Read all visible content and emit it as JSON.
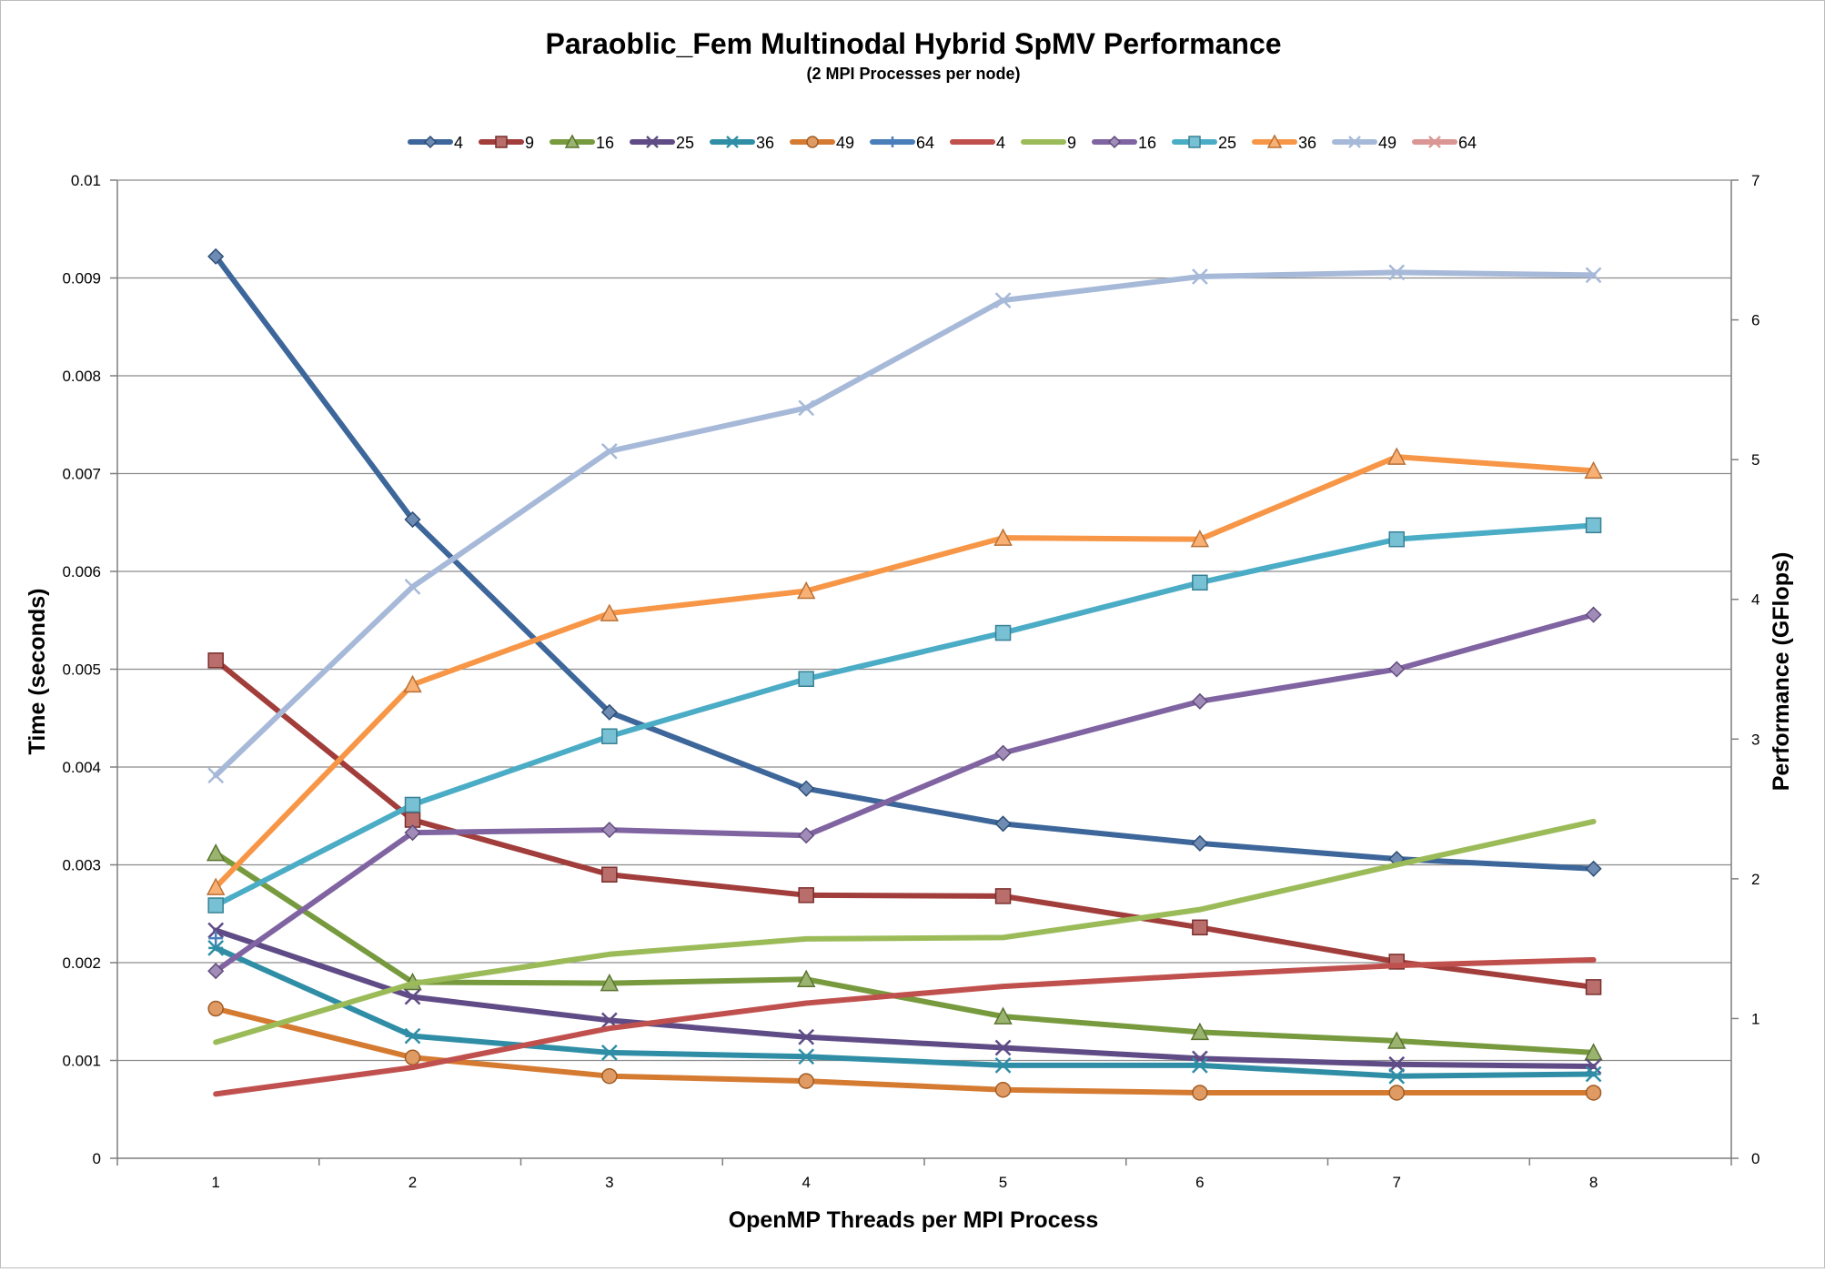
{
  "chart_data": {
    "type": "line",
    "title": "Paraoblic_Fem Multinodal Hybrid SpMV Performance",
    "subtitle": "(2 MPI Processes per node)",
    "xlabel": "OpenMP Threads per MPI Process",
    "ylabel_left": "Time (seconds)",
    "ylabel_right": "Performance (GFlops)",
    "x": [
      1,
      2,
      3,
      4,
      5,
      6,
      7,
      8
    ],
    "ylim_left": [
      0,
      0.01
    ],
    "ylim_right": [
      0,
      7
    ],
    "yticks_left": [
      "0",
      "0.001",
      "0.002",
      "0.003",
      "0.004",
      "0.005",
      "0.006",
      "0.007",
      "0.008",
      "0.009",
      "0.01"
    ],
    "yticks_right": [
      "0",
      "1",
      "2",
      "3",
      "4",
      "5",
      "6",
      "7"
    ],
    "grid": true,
    "legend_position": "top",
    "series": [
      {
        "name": "4",
        "axis": "left",
        "color": "#3d669a",
        "marker": "diamond",
        "values": [
          0.00922,
          0.00653,
          0.00456,
          0.00378,
          0.00342,
          0.00322,
          0.00306,
          0.00296
        ]
      },
      {
        "name": "9",
        "axis": "left",
        "color": "#a13d3a",
        "marker": "square",
        "values": [
          0.00509,
          0.00346,
          0.0029,
          0.00269,
          0.00268,
          0.00236,
          0.00201,
          0.00175
        ]
      },
      {
        "name": "16",
        "axis": "left",
        "color": "#789a3f",
        "marker": "triangle",
        "values": [
          0.00312,
          0.0018,
          0.00179,
          0.00183,
          0.00145,
          0.00129,
          0.0012,
          0.00108
        ]
      },
      {
        "name": "25",
        "axis": "left",
        "color": "#5f4b85",
        "marker": "x",
        "values": [
          0.00233,
          0.00165,
          0.00141,
          0.00124,
          0.00113,
          0.00102,
          0.00096,
          0.00094
        ]
      },
      {
        "name": "36",
        "axis": "left",
        "color": "#2f8ea6",
        "marker": "star",
        "values": [
          0.00215,
          0.00125,
          0.00108,
          0.00104,
          0.00095,
          0.00095,
          0.00084,
          0.00086
        ]
      },
      {
        "name": "49",
        "axis": "left",
        "color": "#d57a31",
        "marker": "circle",
        "values": [
          0.00153,
          0.00103,
          0.00084,
          0.00079,
          0.0007,
          0.00067,
          0.00067,
          0.00067
        ]
      },
      {
        "name": "64",
        "axis": "left",
        "color": "#4a7ebb",
        "marker": "plus",
        "values": [
          0.00225,
          null,
          null,
          null,
          null,
          null,
          null,
          null
        ]
      },
      {
        "name": "4",
        "axis": "right",
        "color": "#c0504d",
        "marker": "none",
        "values": [
          0.46,
          0.65,
          0.93,
          1.11,
          1.23,
          1.31,
          1.38,
          1.42
        ]
      },
      {
        "name": "9",
        "axis": "right",
        "color": "#9bbb59",
        "marker": "none",
        "values": [
          0.83,
          1.25,
          1.46,
          1.57,
          1.58,
          1.78,
          2.1,
          2.41
        ]
      },
      {
        "name": "16",
        "axis": "right",
        "color": "#8064a2",
        "marker": "diamond",
        "values": [
          1.34,
          2.33,
          2.35,
          2.31,
          2.9,
          3.27,
          3.5,
          3.89
        ]
      },
      {
        "name": "25",
        "axis": "right",
        "color": "#4bacc6",
        "marker": "square",
        "values": [
          1.81,
          2.53,
          3.02,
          3.43,
          3.76,
          4.12,
          4.43,
          4.53
        ]
      },
      {
        "name": "36",
        "axis": "right",
        "color": "#f79646",
        "marker": "triangle",
        "values": [
          1.94,
          3.39,
          3.9,
          4.06,
          4.44,
          4.43,
          5.02,
          4.92
        ]
      },
      {
        "name": "49",
        "axis": "right",
        "color": "#a7b9d8",
        "marker": "x",
        "values": [
          2.74,
          4.09,
          5.06,
          5.37,
          6.14,
          6.31,
          6.34,
          6.32
        ]
      },
      {
        "name": "64",
        "axis": "right",
        "color": "#d99694",
        "marker": "star",
        "values": [
          null,
          null,
          null,
          null,
          null,
          null,
          null,
          null
        ]
      }
    ]
  }
}
